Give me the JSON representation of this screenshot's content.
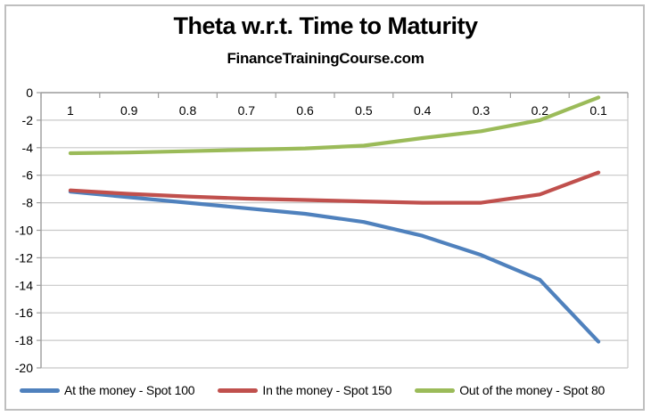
{
  "chart_data": {
    "type": "line",
    "title": "Theta w.r.t. Time to Maturity",
    "subtitle": "FinanceTrainingCourse.com",
    "categories": [
      "1",
      "0.9",
      "0.8",
      "0.7",
      "0.6",
      "0.5",
      "0.4",
      "0.3",
      "0.2",
      "0.1"
    ],
    "series": [
      {
        "name": "At the money - Spot 100",
        "color": "#4F81BD",
        "values": [
          -7.2,
          -7.6,
          -8.0,
          -8.4,
          -8.8,
          -9.4,
          -10.4,
          -11.8,
          -13.6,
          -18.1
        ]
      },
      {
        "name": "In the money - Spot 150",
        "color": "#C0504D",
        "values": [
          -7.1,
          -7.35,
          -7.55,
          -7.7,
          -7.8,
          -7.9,
          -8.0,
          -8.0,
          -7.4,
          -5.8
        ]
      },
      {
        "name": "Out of the money - Spot 80",
        "color": "#9BBB59",
        "values": [
          -4.4,
          -4.35,
          -4.25,
          -4.15,
          -4.05,
          -3.85,
          -3.3,
          -2.8,
          -2.0,
          -0.35
        ]
      }
    ],
    "y_axis": {
      "min": -20,
      "max": 0,
      "tick_step": 2,
      "tick_labels": [
        "0",
        "-2",
        "-4",
        "-6",
        "-8",
        "-10",
        "-12",
        "-14",
        "-16",
        "-18",
        "-20"
      ]
    },
    "x_axis": {
      "position": "top",
      "labels_inside_plot": true
    },
    "grid": true,
    "legend_position": "bottom",
    "colors": {
      "gridline": "#C8C8C8",
      "axis": "#9C9C9C",
      "text": "#000000",
      "background": "#FFFFFF",
      "frame_border": "#BFBFBF"
    }
  }
}
